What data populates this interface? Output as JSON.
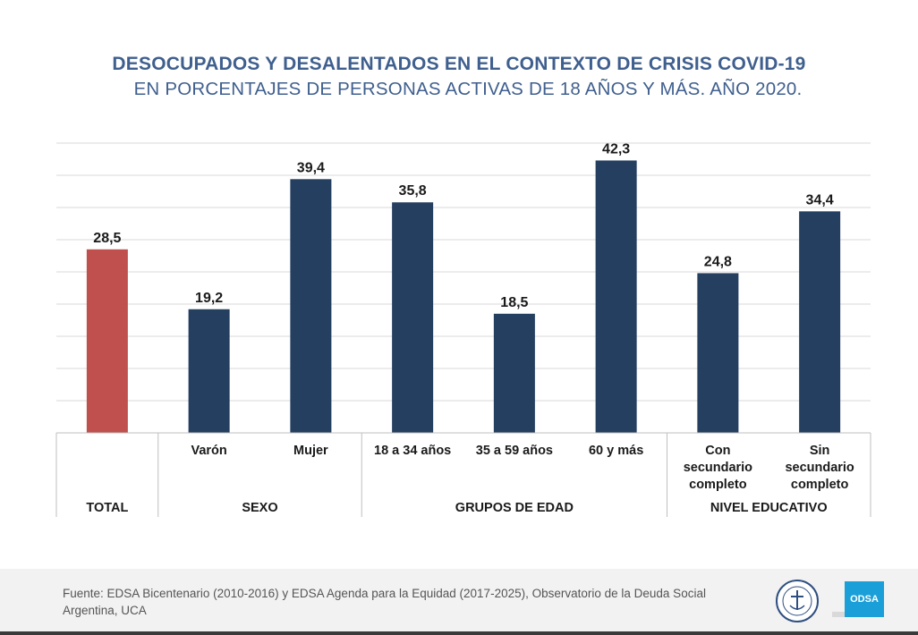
{
  "header": {
    "title": "DESOCUPADOS Y DESALENTADOS EN EL CONTEXTO DE CRISIS COVID-19",
    "subtitle": "EN PORCENTAJES DE PERSONAS ACTIVAS DE 18 AÑOS Y MÁS. AÑO 2020."
  },
  "chart_data": {
    "type": "bar",
    "categories": [
      [
        "TOTAL"
      ],
      [
        "Varón"
      ],
      [
        "Mujer"
      ],
      [
        "18 a 34 años"
      ],
      [
        "35 a 59 años"
      ],
      [
        "60 y más"
      ],
      [
        "Con",
        "secundario",
        "completo"
      ],
      [
        "Sin",
        "secundario",
        "completo"
      ]
    ],
    "values": [
      28.5,
      19.2,
      39.4,
      35.8,
      18.5,
      42.3,
      24.8,
      34.4
    ],
    "value_labels": [
      "28,5",
      "19,2",
      "39,4",
      "35,8",
      "18,5",
      "42,3",
      "24,8",
      "34,4"
    ],
    "groups": [
      {
        "label": "TOTAL",
        "categories": [
          0
        ]
      },
      {
        "label": "SEXO",
        "categories": [
          1,
          2
        ]
      },
      {
        "label": "GRUPOS DE EDAD",
        "categories": [
          3,
          4,
          5
        ]
      },
      {
        "label": "NIVEL EDUCATIVO",
        "categories": [
          6,
          7
        ]
      }
    ],
    "ylim": [
      0,
      45
    ],
    "grid": true,
    "colors": {
      "total": "#c0504d",
      "bars": "#243f60",
      "grid": "#d9d9d9",
      "axis": "#bfbfbf"
    }
  },
  "footer": {
    "source": "Fuente: EDSA Bicentenario (2010-2016) y EDSA Agenda para la Equidad (2017-2025), Observatorio de la Deuda Social Argentina, UCA",
    "logo_text": "ODSA"
  }
}
